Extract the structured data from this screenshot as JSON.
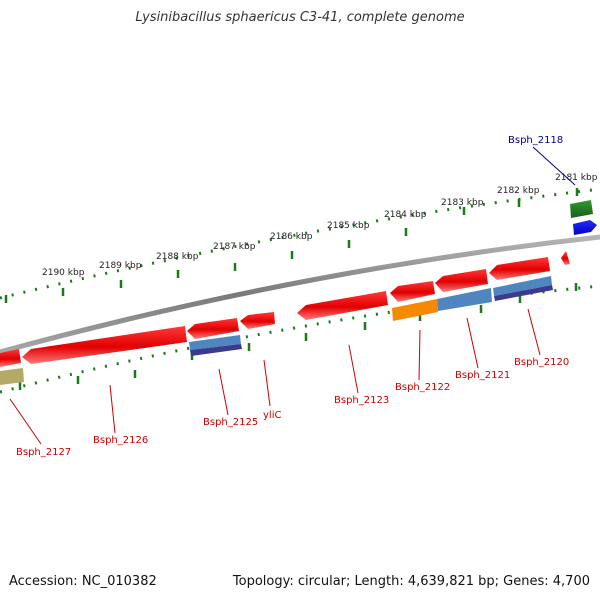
{
  "header": {
    "title": "Lysinibacillus sphaericus C3-41, complete genome"
  },
  "footer": {
    "accession": "Accession: NC_010382",
    "summary": "Topology: circular; Length: 4,639,821 bp; Genes: 4,700"
  },
  "ruler": {
    "unit": "kbp",
    "labels": [
      "2181 kbp",
      "2182 kbp",
      "2183 kbp",
      "2184 kbp",
      "2185 kbp",
      "2186 kbp",
      "2187 kbp",
      "2188 kbp",
      "2189 kbp",
      "2190 kbp"
    ]
  },
  "genes": [
    {
      "name": "Bsph_2118",
      "strand": "+",
      "color": "#00008B"
    },
    {
      "name": "Bsph_2120",
      "strand": "-",
      "color": "#CC0000"
    },
    {
      "name": "Bsph_2121",
      "strand": "-",
      "color": "#CC0000"
    },
    {
      "name": "Bsph_2122",
      "strand": "-",
      "color": "#CC0000"
    },
    {
      "name": "Bsph_2123",
      "strand": "-",
      "color": "#CC0000"
    },
    {
      "name": "yliC",
      "strand": "-",
      "color": "#CC0000"
    },
    {
      "name": "Bsph_2125",
      "strand": "-",
      "color": "#CC0000"
    },
    {
      "name": "Bsph_2126",
      "strand": "-",
      "color": "#CC0000"
    },
    {
      "name": "Bsph_2127",
      "strand": "-",
      "color": "#CC0000"
    }
  ],
  "colors": {
    "cds": "#e00000",
    "cds_forward": "#0000ee",
    "forward_feature": "#1f7a1f",
    "ruler": "#1a7a1a",
    "backbone": "#8a8a8a",
    "feature_blue": "#4f86bf",
    "feature_purple": "#3c3a8c",
    "feature_orange": "#f58a00",
    "feature_khaki": "#b5a968",
    "label_forward": "#00008B",
    "label_reverse": "#CC0000"
  }
}
